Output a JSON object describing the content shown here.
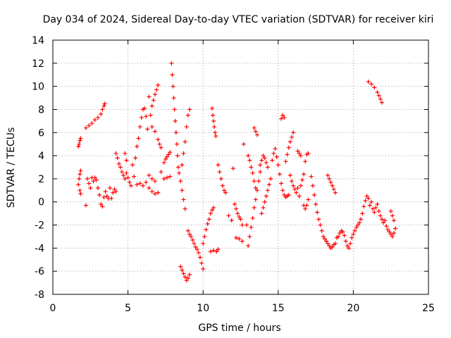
{
  "chart_data": {
    "type": "scatter",
    "title": "Day 034 of 2024, Sidereal Day-to-day VTEC variation (SDTVAR) for receiver kiri",
    "xlabel": "GPS time / hours",
    "ylabel": "SDTVAR / TECUs",
    "xlim": [
      0,
      25
    ],
    "ylim": [
      -8,
      14
    ],
    "xticks": [
      0,
      5,
      10,
      15,
      20,
      25
    ],
    "yticks": [
      -8,
      -6,
      -4,
      -2,
      0,
      2,
      4,
      6,
      8,
      10,
      12,
      14
    ],
    "grid": true,
    "marker": "+",
    "color": "#ff0000",
    "series": [
      {
        "points": [
          [
            1.7,
            4.8
          ],
          [
            1.75,
            5.0
          ],
          [
            1.8,
            5.3
          ],
          [
            1.85,
            5.5
          ],
          [
            1.7,
            1.5
          ],
          [
            1.75,
            2.0
          ],
          [
            1.8,
            2.4
          ],
          [
            1.85,
            2.7
          ],
          [
            1.8,
            1.0
          ],
          [
            1.85,
            0.7
          ],
          [
            2.2,
            6.4
          ],
          [
            2.4,
            6.6
          ],
          [
            2.6,
            6.8
          ],
          [
            2.8,
            7.1
          ],
          [
            3.0,
            7.3
          ],
          [
            3.2,
            7.6
          ],
          [
            3.3,
            8.0
          ],
          [
            3.4,
            8.3
          ],
          [
            3.45,
            8.5
          ],
          [
            2.2,
            -0.3
          ],
          [
            2.3,
            2.0
          ],
          [
            2.4,
            1.6
          ],
          [
            2.5,
            1.2
          ],
          [
            2.6,
            2.1
          ],
          [
            2.7,
            1.8
          ],
          [
            2.8,
            2.1
          ],
          [
            2.9,
            1.9
          ],
          [
            3.0,
            1.2
          ],
          [
            3.1,
            0.6
          ],
          [
            3.2,
            -0.2
          ],
          [
            3.3,
            -0.4
          ],
          [
            3.4,
            0.4
          ],
          [
            3.5,
            0.9
          ],
          [
            3.6,
            0.5
          ],
          [
            3.7,
            0.3
          ],
          [
            3.8,
            1.2
          ],
          [
            3.9,
            0.3
          ],
          [
            4.0,
            0.8
          ],
          [
            4.1,
            1.1
          ],
          [
            4.2,
            0.9
          ],
          [
            4.2,
            4.2
          ],
          [
            4.3,
            3.8
          ],
          [
            4.4,
            3.3
          ],
          [
            4.5,
            3.0
          ],
          [
            4.6,
            2.6
          ],
          [
            4.7,
            2.3
          ],
          [
            4.8,
            2.0
          ],
          [
            4.9,
            2.5
          ],
          [
            4.8,
            4.2
          ],
          [
            4.9,
            3.6
          ],
          [
            5.0,
            2.1
          ],
          [
            5.1,
            1.7
          ],
          [
            5.2,
            1.4
          ],
          [
            5.3,
            3.2
          ],
          [
            5.4,
            2.2
          ],
          [
            5.5,
            3.8
          ],
          [
            5.6,
            4.8
          ],
          [
            5.7,
            5.5
          ],
          [
            5.8,
            6.5
          ],
          [
            5.9,
            7.3
          ],
          [
            6.0,
            8.0
          ],
          [
            6.1,
            8.1
          ],
          [
            6.2,
            7.4
          ],
          [
            6.3,
            6.3
          ],
          [
            6.4,
            9.1
          ],
          [
            6.5,
            7.5
          ],
          [
            6.6,
            8.3
          ],
          [
            6.7,
            8.8
          ],
          [
            6.8,
            9.3
          ],
          [
            6.9,
            9.7
          ],
          [
            7.0,
            10.1
          ],
          [
            6.6,
            6.5
          ],
          [
            6.8,
            6.1
          ],
          [
            7.0,
            5.4
          ],
          [
            7.1,
            5.0
          ],
          [
            7.2,
            4.7
          ],
          [
            5.6,
            1.5
          ],
          [
            5.8,
            1.6
          ],
          [
            6.0,
            1.4
          ],
          [
            6.2,
            1.7
          ],
          [
            6.4,
            2.3
          ],
          [
            6.6,
            2.0
          ],
          [
            6.8,
            1.8
          ],
          [
            6.4,
            1.2
          ],
          [
            6.6,
            0.9
          ],
          [
            6.8,
            0.7
          ],
          [
            7.0,
            0.8
          ],
          [
            7.2,
            2.6
          ],
          [
            7.4,
            3.4
          ],
          [
            7.5,
            3.7
          ],
          [
            7.6,
            3.9
          ],
          [
            7.7,
            4.1
          ],
          [
            7.8,
            4.3
          ],
          [
            7.4,
            2.0
          ],
          [
            7.6,
            2.1
          ],
          [
            7.8,
            2.2
          ],
          [
            7.9,
            12.0
          ],
          [
            7.95,
            11.0
          ],
          [
            8.0,
            10.0
          ],
          [
            8.05,
            9.0
          ],
          [
            8.1,
            8.0
          ],
          [
            8.15,
            7.0
          ],
          [
            8.2,
            6.0
          ],
          [
            8.25,
            5.0
          ],
          [
            8.3,
            4.0
          ],
          [
            8.35,
            3.0
          ],
          [
            8.4,
            2.5
          ],
          [
            8.5,
            1.8
          ],
          [
            8.6,
            1.0
          ],
          [
            8.7,
            0.2
          ],
          [
            8.8,
            -0.6
          ],
          [
            8.6,
            3.2
          ],
          [
            8.7,
            4.2
          ],
          [
            8.8,
            5.2
          ],
          [
            8.9,
            6.5
          ],
          [
            9.0,
            7.5
          ],
          [
            9.1,
            8.0
          ],
          [
            9.0,
            -2.5
          ],
          [
            9.1,
            -2.8
          ],
          [
            9.2,
            -3.0
          ],
          [
            9.3,
            -3.3
          ],
          [
            9.4,
            -3.6
          ],
          [
            9.5,
            -3.9
          ],
          [
            9.6,
            -4.1
          ],
          [
            9.7,
            -4.4
          ],
          [
            9.8,
            -4.8
          ],
          [
            9.9,
            -5.3
          ],
          [
            10.0,
            -5.8
          ],
          [
            10.0,
            -3.6
          ],
          [
            10.1,
            -3.0
          ],
          [
            10.2,
            -2.4
          ],
          [
            10.3,
            -1.9
          ],
          [
            10.4,
            -1.5
          ],
          [
            10.5,
            -1.0
          ],
          [
            10.6,
            -0.7
          ],
          [
            10.7,
            -0.5
          ],
          [
            8.5,
            -5.6
          ],
          [
            8.6,
            -5.9
          ],
          [
            8.7,
            -6.2
          ],
          [
            8.8,
            -6.5
          ],
          [
            8.9,
            -6.8
          ],
          [
            9.0,
            -6.6
          ],
          [
            9.1,
            -6.3
          ],
          [
            10.5,
            -4.3
          ],
          [
            10.7,
            -4.2
          ],
          [
            10.9,
            -4.3
          ],
          [
            11.0,
            -4.1
          ],
          [
            10.6,
            8.1
          ],
          [
            10.65,
            7.5
          ],
          [
            10.7,
            7.0
          ],
          [
            10.75,
            6.5
          ],
          [
            10.8,
            6.0
          ],
          [
            10.85,
            5.7
          ],
          [
            11.0,
            3.2
          ],
          [
            11.1,
            2.6
          ],
          [
            11.2,
            2.0
          ],
          [
            11.3,
            1.4
          ],
          [
            11.4,
            1.0
          ],
          [
            11.5,
            0.8
          ],
          [
            11.7,
            -1.2
          ],
          [
            11.9,
            -1.6
          ],
          [
            12.0,
            2.9
          ],
          [
            12.1,
            -0.2
          ],
          [
            12.2,
            -0.6
          ],
          [
            12.3,
            -1.0
          ],
          [
            12.4,
            -1.3
          ],
          [
            12.5,
            -1.5
          ],
          [
            12.6,
            -2.0
          ],
          [
            12.2,
            -3.1
          ],
          [
            12.4,
            -3.2
          ],
          [
            12.6,
            -3.4
          ],
          [
            12.7,
            5.0
          ],
          [
            12.9,
            -2.0
          ],
          [
            13.0,
            -3.8
          ],
          [
            13.1,
            -3.0
          ],
          [
            13.2,
            -2.2
          ],
          [
            13.3,
            -1.4
          ],
          [
            13.4,
            -0.5
          ],
          [
            13.5,
            0.2
          ],
          [
            13.6,
            1.0
          ],
          [
            13.7,
            1.8
          ],
          [
            13.8,
            2.6
          ],
          [
            13.0,
            4.0
          ],
          [
            13.1,
            3.6
          ],
          [
            13.2,
            3.0
          ],
          [
            13.3,
            2.5
          ],
          [
            13.4,
            1.8
          ],
          [
            13.5,
            1.2
          ],
          [
            13.4,
            6.4
          ],
          [
            13.5,
            6.1
          ],
          [
            13.6,
            5.8
          ],
          [
            13.8,
            3.2
          ],
          [
            13.9,
            3.6
          ],
          [
            14.0,
            4.0
          ],
          [
            14.1,
            3.8
          ],
          [
            14.2,
            3.4
          ],
          [
            14.3,
            3.0
          ],
          [
            13.9,
            -1.0
          ],
          [
            14.0,
            -0.5
          ],
          [
            14.1,
            0.0
          ],
          [
            14.2,
            0.5
          ],
          [
            14.3,
            1.0
          ],
          [
            14.4,
            1.5
          ],
          [
            14.5,
            2.0
          ],
          [
            14.6,
            3.6
          ],
          [
            14.7,
            4.2
          ],
          [
            14.8,
            4.6
          ],
          [
            14.9,
            3.9
          ],
          [
            15.0,
            3.2
          ],
          [
            15.1,
            2.4
          ],
          [
            15.2,
            1.6
          ],
          [
            15.3,
            1.0
          ],
          [
            15.4,
            0.6
          ],
          [
            15.5,
            0.4
          ],
          [
            15.6,
            0.5
          ],
          [
            15.7,
            0.6
          ],
          [
            15.2,
            7.2
          ],
          [
            15.3,
            7.5
          ],
          [
            15.4,
            7.3
          ],
          [
            15.5,
            3.5
          ],
          [
            15.6,
            4.1
          ],
          [
            15.7,
            4.7
          ],
          [
            15.8,
            5.2
          ],
          [
            15.9,
            5.6
          ],
          [
            16.0,
            6.0
          ],
          [
            15.8,
            2.3
          ],
          [
            15.9,
            1.8
          ],
          [
            16.0,
            1.4
          ],
          [
            16.1,
            1.1
          ],
          [
            16.2,
            0.8
          ],
          [
            16.3,
            1.2
          ],
          [
            16.4,
            0.5
          ],
          [
            16.3,
            4.4
          ],
          [
            16.4,
            4.2
          ],
          [
            16.5,
            4.0
          ],
          [
            16.5,
            1.4
          ],
          [
            16.6,
            1.9
          ],
          [
            16.7,
            2.4
          ],
          [
            16.8,
            3.5
          ],
          [
            16.9,
            4.1
          ],
          [
            17.0,
            4.2
          ],
          [
            16.7,
            -0.3
          ],
          [
            16.8,
            -0.6
          ],
          [
            16.9,
            -0.3
          ],
          [
            17.0,
            0.2
          ],
          [
            17.2,
            2.2
          ],
          [
            17.3,
            1.4
          ],
          [
            17.4,
            0.6
          ],
          [
            17.5,
            -0.2
          ],
          [
            17.6,
            -0.9
          ],
          [
            17.7,
            -1.5
          ],
          [
            17.8,
            -2.0
          ],
          [
            17.9,
            -2.5
          ],
          [
            18.0,
            -3.0
          ],
          [
            18.1,
            -3.2
          ],
          [
            18.2,
            -3.4
          ],
          [
            18.3,
            -3.6
          ],
          [
            18.4,
            -3.8
          ],
          [
            18.5,
            -4.0
          ],
          [
            18.6,
            -3.9
          ],
          [
            18.7,
            -3.7
          ],
          [
            18.8,
            -3.6
          ],
          [
            18.3,
            2.3
          ],
          [
            18.4,
            2.0
          ],
          [
            18.5,
            1.7
          ],
          [
            18.6,
            1.4
          ],
          [
            18.7,
            1.1
          ],
          [
            18.8,
            0.8
          ],
          [
            18.9,
            -3.1
          ],
          [
            19.0,
            -3.0
          ],
          [
            19.1,
            -2.7
          ],
          [
            19.2,
            -2.5
          ],
          [
            19.3,
            -2.6
          ],
          [
            19.4,
            -2.9
          ],
          [
            19.5,
            -3.4
          ],
          [
            19.6,
            -3.8
          ],
          [
            19.7,
            -4.0
          ],
          [
            19.8,
            -3.6
          ],
          [
            19.9,
            -3.1
          ],
          [
            20.0,
            -2.8
          ],
          [
            20.1,
            -2.5
          ],
          [
            20.2,
            -2.2
          ],
          [
            20.3,
            -2.0
          ],
          [
            20.4,
            -1.8
          ],
          [
            20.5,
            -1.5
          ],
          [
            20.6,
            -1.0
          ],
          [
            20.7,
            -0.4
          ],
          [
            20.8,
            0.1
          ],
          [
            20.9,
            0.5
          ],
          [
            21.0,
            0.3
          ],
          [
            21.1,
            -0.3
          ],
          [
            21.2,
            0.0
          ],
          [
            21.3,
            -0.6
          ],
          [
            21.4,
            -0.9
          ],
          [
            21.5,
            -0.5
          ],
          [
            21.6,
            -0.2
          ],
          [
            21.7,
            -0.8
          ],
          [
            21.8,
            -1.2
          ],
          [
            21.9,
            -1.5
          ],
          [
            22.0,
            -1.8
          ],
          [
            22.1,
            -1.6
          ],
          [
            22.2,
            -2.1
          ],
          [
            22.3,
            -2.4
          ],
          [
            22.4,
            -2.6
          ],
          [
            22.5,
            -2.8
          ],
          [
            22.6,
            -3.0
          ],
          [
            22.7,
            -2.7
          ],
          [
            22.8,
            -2.3
          ],
          [
            22.7,
            -1.6
          ],
          [
            22.6,
            -1.2
          ],
          [
            22.5,
            -0.8
          ],
          [
            21.0,
            10.4
          ],
          [
            21.2,
            10.2
          ],
          [
            21.4,
            9.9
          ],
          [
            21.6,
            9.5
          ],
          [
            21.7,
            9.2
          ],
          [
            21.8,
            8.9
          ],
          [
            21.9,
            8.6
          ]
        ]
      }
    ]
  }
}
